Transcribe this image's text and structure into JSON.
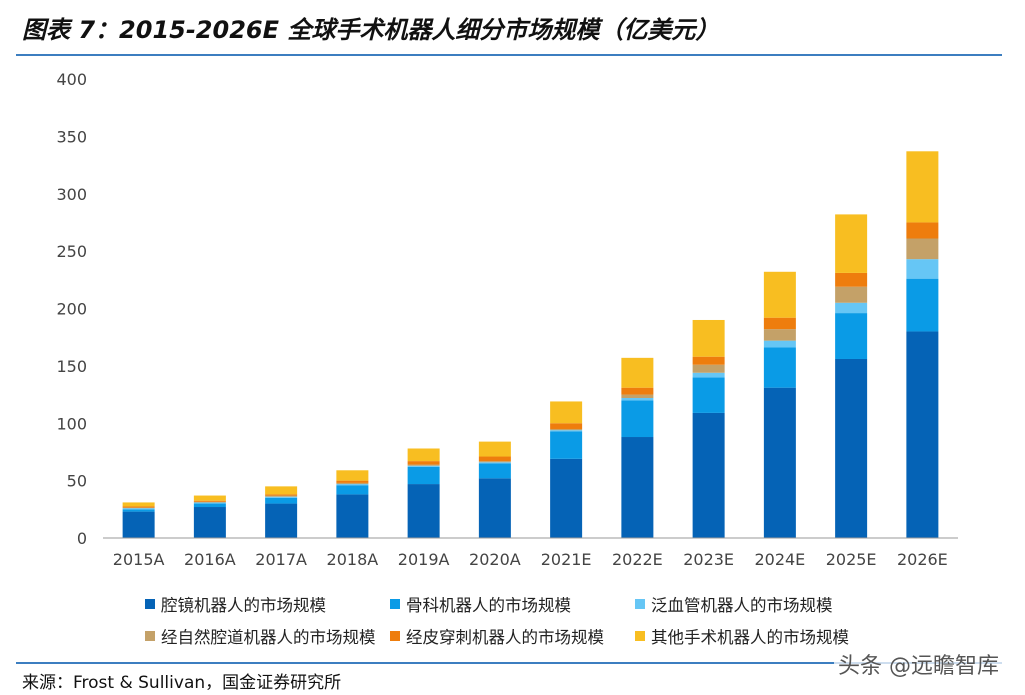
{
  "header": {
    "title": "图表 7：2015-2026E 全球手术机器人细分市场规模（亿美元）"
  },
  "footer": {
    "source": "来源：Frost & Sullivan，国金证券研究所",
    "watermark": "头条 @远瞻智库"
  },
  "chart_data": {
    "type": "bar",
    "stacked": true,
    "title": "",
    "xlabel": "",
    "ylabel": "",
    "ylim": [
      0,
      400
    ],
    "yticks": [
      0,
      50,
      100,
      150,
      200,
      250,
      300,
      350,
      400
    ],
    "grid": false,
    "legend_position": "bottom",
    "categories": [
      "2015A",
      "2016A",
      "2017A",
      "2018A",
      "2019A",
      "2020A",
      "2021E",
      "2022E",
      "2023E",
      "2024E",
      "2025E",
      "2026E"
    ],
    "series": [
      {
        "name": "腔镜机器人的市场规模",
        "color": "#0563b6",
        "values": [
          23,
          27,
          30,
          38,
          47,
          52,
          69,
          88,
          109,
          131,
          156,
          180
        ]
      },
      {
        "name": "骨科机器人的市场规模",
        "color": "#0a9be6",
        "values": [
          2,
          3,
          5,
          8,
          15,
          13,
          24,
          32,
          31,
          35,
          40,
          46
        ]
      },
      {
        "name": "泛血管机器人的市场规模",
        "color": "#66c6f5",
        "values": [
          1,
          1,
          1,
          1,
          1,
          1,
          1,
          2,
          4,
          6,
          9,
          17
        ]
      },
      {
        "name": "经自然腔道机器人的市场规模",
        "color": "#c4a168",
        "values": [
          0.5,
          0.5,
          1,
          1,
          1,
          1,
          1,
          3,
          7,
          10,
          14,
          18
        ]
      },
      {
        "name": "经皮穿刺机器人的市场规模",
        "color": "#ee7d0d",
        "values": [
          1,
          1,
          1,
          2,
          3,
          4,
          5,
          6,
          7,
          10,
          12,
          14
        ]
      },
      {
        "name": "其他手术机器人的市场规模",
        "color": "#f8be21",
        "values": [
          3.5,
          4.5,
          7,
          9,
          11,
          13,
          19,
          26,
          32,
          40,
          51,
          62
        ]
      }
    ]
  }
}
